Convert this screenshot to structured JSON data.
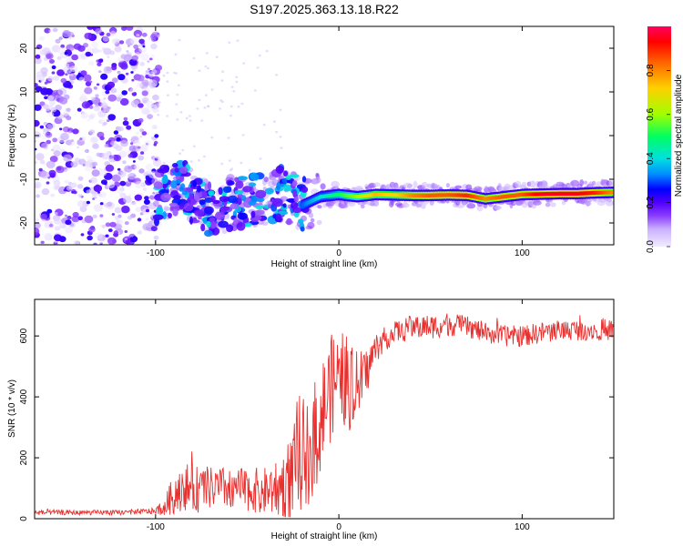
{
  "chart_data": [
    {
      "type": "heatmap",
      "title": "S197.2025.363.13.18.R22",
      "xlabel": "Height of straight line (km)",
      "ylabel": "Frequency (Hz)",
      "xlim": [
        -166,
        150
      ],
      "ylim": [
        -25,
        25
      ],
      "x_ticks": [
        -100,
        0,
        100
      ],
      "y_ticks": [
        20,
        10,
        0,
        -10,
        -20
      ],
      "colorbar": {
        "label": "Normalized spectral amplitude",
        "range": [
          0,
          1
        ],
        "ticks": [
          "0.0",
          "0.2",
          "0.4",
          "0.6",
          "0.8"
        ],
        "stops": [
          "#f2ecff",
          "#c9b0ff",
          "#8a3cff",
          "#5000ff",
          "#0000ff",
          "#0090ff",
          "#00e0e0",
          "#00ff60",
          "#a0ff00",
          "#ffd000",
          "#ff6000",
          "#ff0000",
          "#ff0060"
        ]
      },
      "ridge": {
        "x": [
          -100,
          -85,
          -70,
          -55,
          -40,
          -30,
          -20,
          -10,
          0,
          10,
          20,
          30,
          40,
          50,
          60,
          70,
          80,
          90,
          100,
          110,
          120,
          130,
          140,
          150
        ],
        "freq": [
          -14,
          -12,
          -17,
          -15,
          -14.5,
          -13,
          -16,
          -14,
          -13.5,
          -14,
          -13.5,
          -13.6,
          -13.7,
          -13.7,
          -13.6,
          -13.7,
          -14.5,
          -14,
          -13.5,
          -13.4,
          -13.3,
          -13.3,
          -13.1,
          -13
        ],
        "amplitude": [
          0.35,
          0.35,
          0.35,
          0.35,
          0.35,
          0.35,
          0.3,
          0.4,
          0.5,
          0.6,
          0.75,
          0.7,
          0.8,
          0.85,
          0.85,
          0.9,
          0.8,
          0.85,
          0.85,
          0.95,
          0.95,
          0.95,
          0.9,
          0.8
        ]
      }
    },
    {
      "type": "line",
      "xlabel": "Height of straight line (km)",
      "ylabel": "SNR (10 * v/v)",
      "xlim": [
        -166,
        150
      ],
      "ylim": [
        0,
        720
      ],
      "x_ticks": [
        -100,
        0,
        100
      ],
      "y_ticks": [
        0,
        200,
        400,
        600
      ],
      "series": [
        {
          "name": "SNR",
          "color": "#e8312f",
          "x": [
            -166,
            -120,
            -100,
            -95,
            -90,
            -85,
            -80,
            -70,
            -60,
            -50,
            -40,
            -30,
            -25,
            -20,
            -15,
            -10,
            -5,
            0,
            5,
            10,
            15,
            20,
            25,
            30,
            40,
            50,
            60,
            70,
            80,
            90,
            100,
            110,
            120,
            130,
            140,
            150
          ],
          "y": [
            20,
            20,
            25,
            40,
            80,
            110,
            95,
            100,
            100,
            95,
            90,
            110,
            150,
            190,
            240,
            330,
            420,
            480,
            440,
            430,
            480,
            560,
            590,
            610,
            630,
            630,
            640,
            630,
            610,
            600,
            600,
            610,
            620,
            620,
            620,
            620
          ],
          "noise_amplitude": [
            8,
            8,
            10,
            30,
            70,
            80,
            80,
            70,
            70,
            70,
            80,
            110,
            160,
            160,
            180,
            180,
            180,
            150,
            160,
            120,
            80,
            50,
            40,
            40,
            40,
            40,
            40,
            35,
            35,
            35,
            35,
            35,
            35,
            35,
            35,
            35
          ]
        }
      ]
    }
  ]
}
